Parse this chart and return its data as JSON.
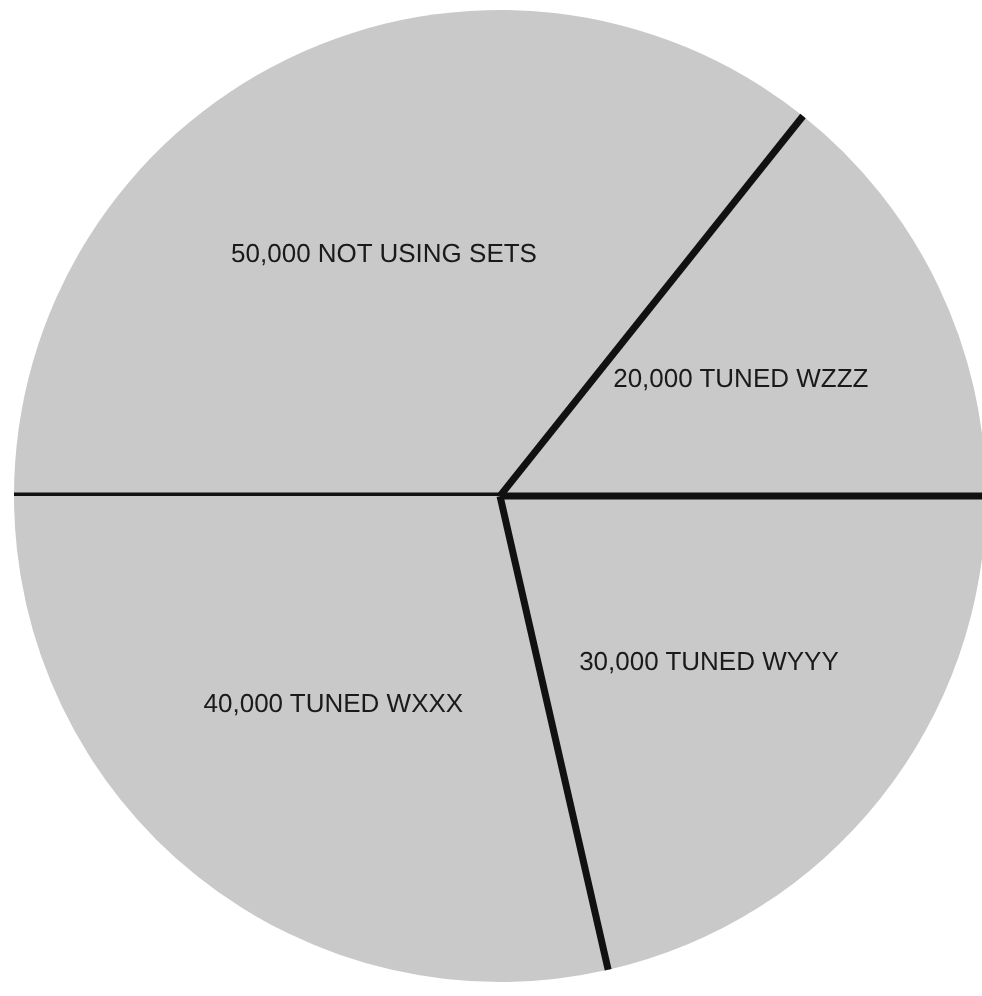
{
  "chart_data": {
    "type": "pie",
    "categories": [
      "50,000 NOT USING SETS",
      "20,000 TUNED WZZZ",
      "30,000 TUNED WYYY",
      "40,000 TUNED WXXX"
    ],
    "values": [
      50000,
      20000,
      30000,
      40000
    ],
    "colors": [
      "#c9c9c9",
      "#c9c9c9",
      "#c9c9c9",
      "#c9c9c9"
    ]
  }
}
